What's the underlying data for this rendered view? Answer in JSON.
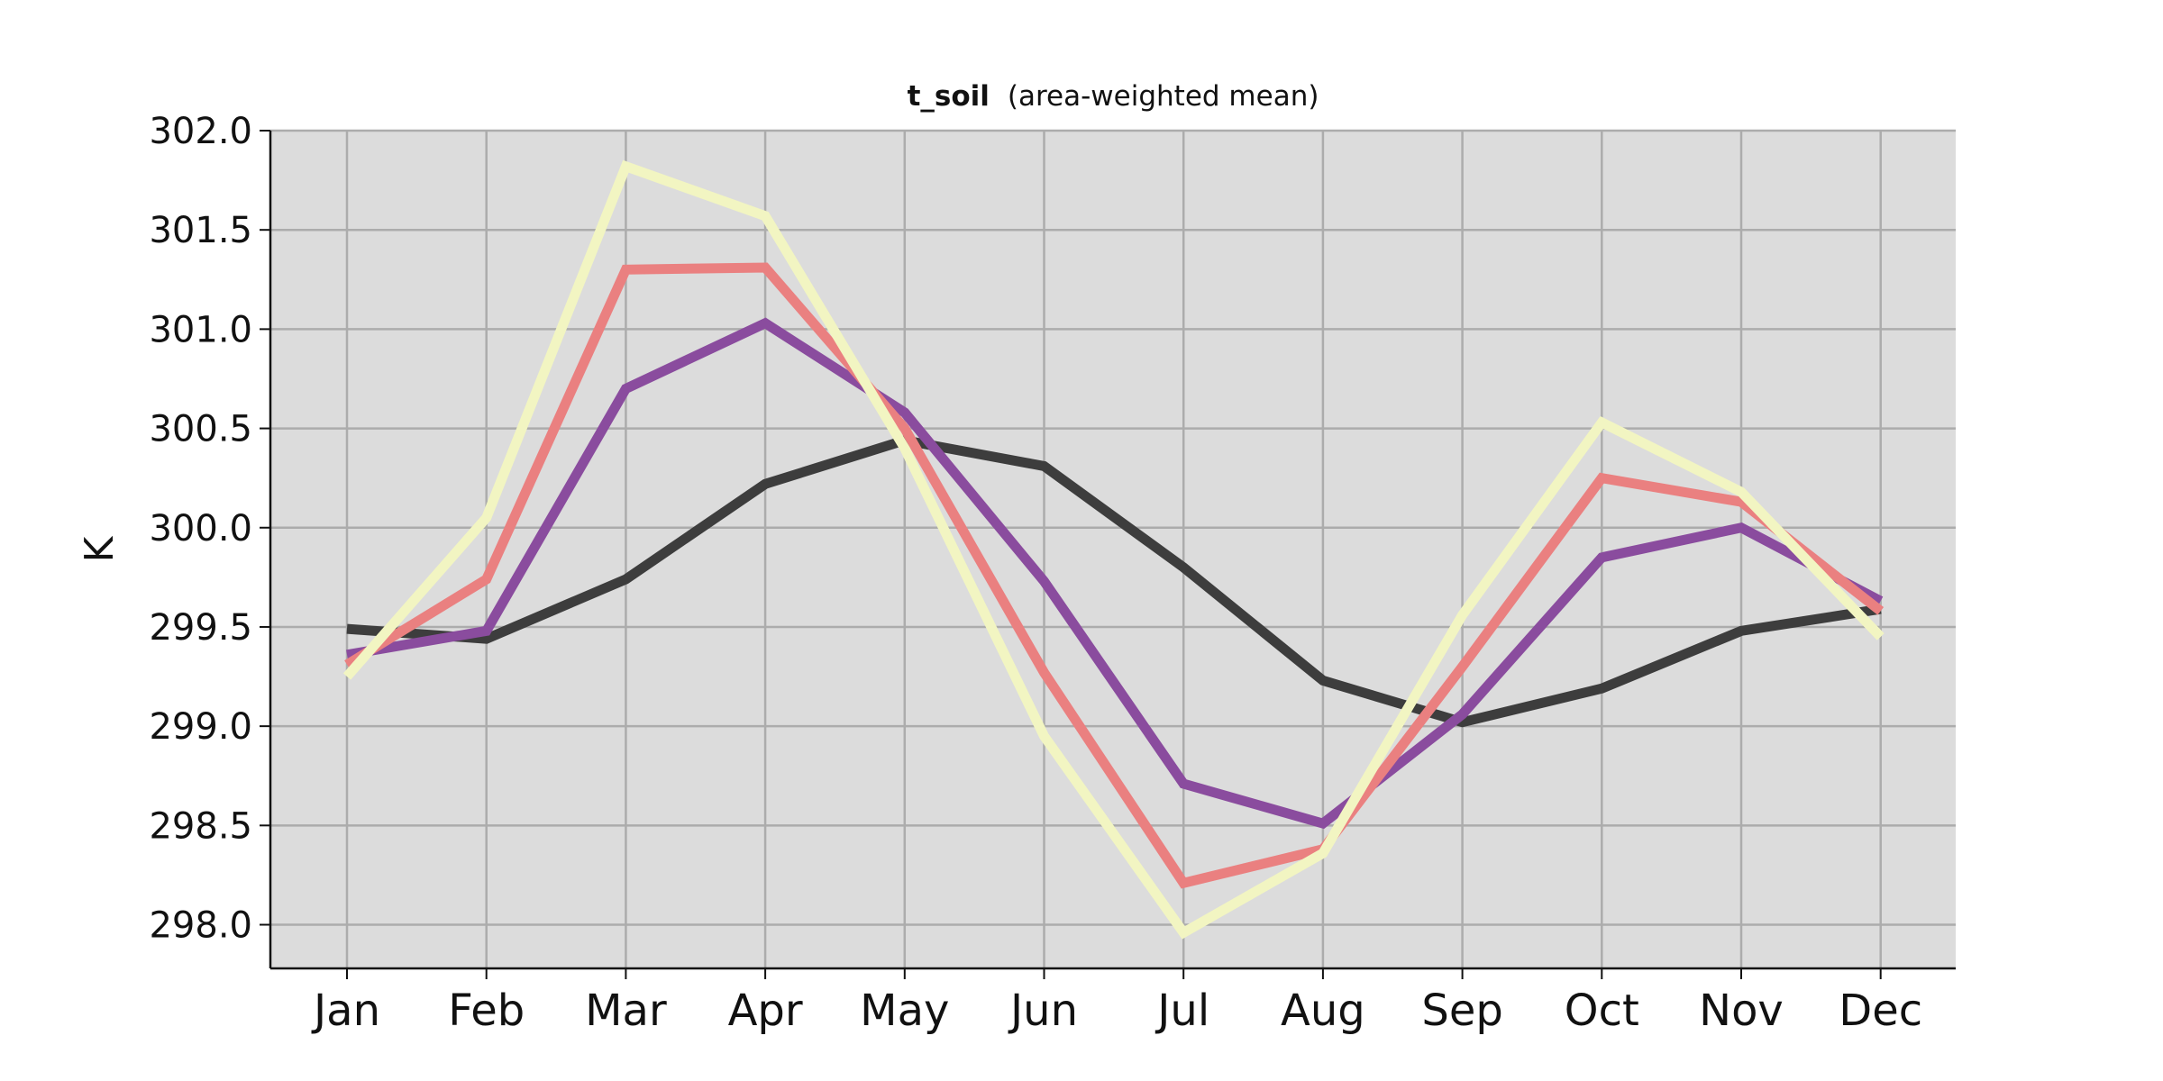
{
  "chart_data": {
    "type": "line",
    "title": "t_soil",
    "subtitle": "(area-weighted mean)",
    "xlabel": "",
    "ylabel": "K",
    "categories": [
      "Jan",
      "Feb",
      "Mar",
      "Apr",
      "May",
      "Jun",
      "Jul",
      "Aug",
      "Sep",
      "Oct",
      "Nov",
      "Dec"
    ],
    "yticks": [
      "298.0",
      "298.5",
      "299.0",
      "299.5",
      "300.0",
      "300.5",
      "301.0",
      "301.5",
      "302.0"
    ],
    "ylim": [
      297.78,
      302.0
    ],
    "grid": true,
    "series": [
      {
        "color": "#3d3d3d",
        "values": [
          299.49,
          299.44,
          299.74,
          300.22,
          300.44,
          300.31,
          299.8,
          299.23,
          299.02,
          299.19,
          299.48,
          299.59
        ]
      },
      {
        "color": "#8a4c9e",
        "values": [
          299.36,
          299.48,
          300.7,
          301.03,
          300.58,
          299.73,
          298.71,
          298.51,
          299.06,
          299.85,
          300.0,
          299.63
        ]
      },
      {
        "color": "#ea8080",
        "values": [
          299.31,
          299.74,
          301.3,
          301.31,
          300.5,
          299.27,
          298.21,
          298.38,
          299.3,
          300.25,
          300.13,
          299.58
        ]
      },
      {
        "color": "#f2f5c2",
        "values": [
          299.25,
          300.05,
          301.82,
          301.57,
          300.4,
          298.95,
          297.96,
          298.36,
          299.56,
          300.53,
          300.18,
          299.45
        ]
      }
    ],
    "colors": {
      "plot_background": "#dcdcdc",
      "grid": "#acacac",
      "axis": "#111111"
    }
  }
}
